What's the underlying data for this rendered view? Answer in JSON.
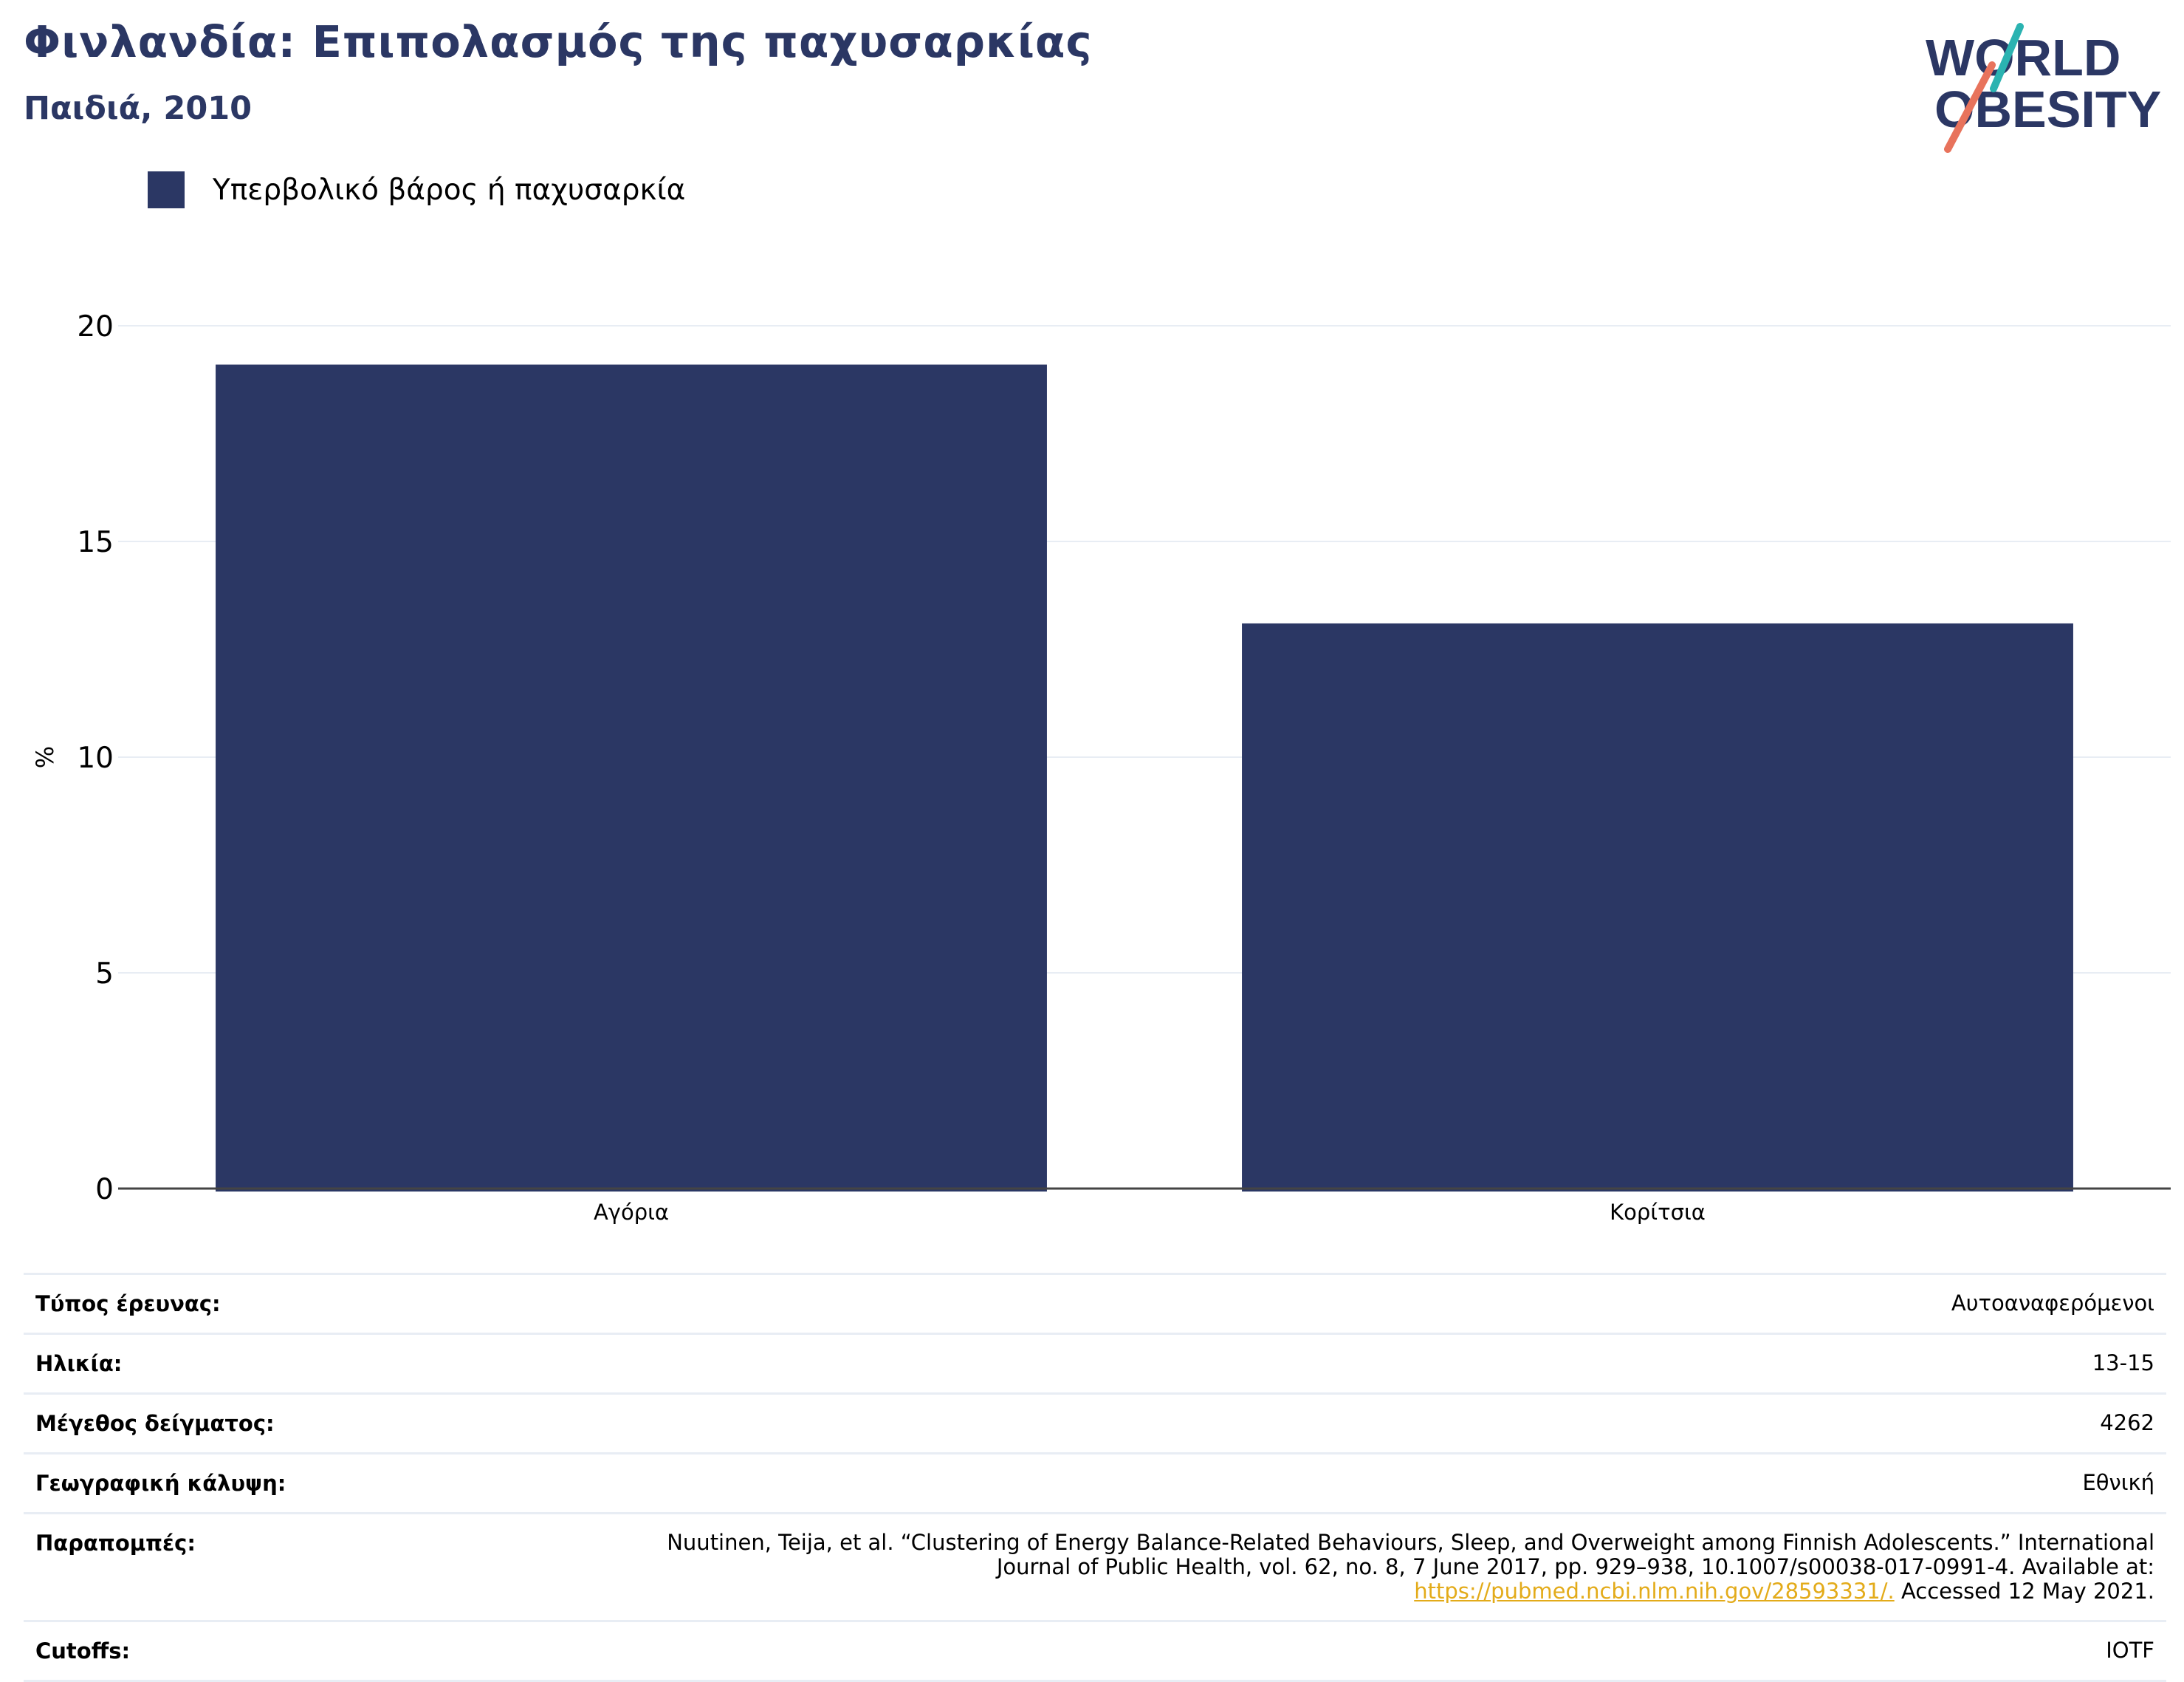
{
  "header": {
    "title": "Φινλανδία: Επιπολασμός της παχυσαρκίας",
    "subtitle": "Παιδιά, 2010"
  },
  "logo": {
    "line1": "WORLD",
    "line2": "OBESITY"
  },
  "colors": {
    "bar": "#2b3764",
    "title": "#2b3764",
    "link": "#e3ab1a",
    "grid": "#e8edf4"
  },
  "chart_data": {
    "type": "bar",
    "categories": [
      "Αγόρια",
      "Κορίτσια"
    ],
    "series": [
      {
        "name": "Υπερβολικό βάρος ή παχυσαρκία",
        "values": [
          19.1,
          13.1
        ]
      }
    ],
    "ylabel": "%",
    "ylim": [
      0,
      20
    ],
    "yticks": [
      0,
      5,
      10,
      15,
      20
    ],
    "grid": true,
    "legend": "top-left"
  },
  "meta": {
    "survey_type": {
      "label": "Τύπος έρευνας:",
      "value": "Αυτοαναφερόμενοι"
    },
    "age": {
      "label": "Ηλικία:",
      "value": "13-15"
    },
    "sample_size": {
      "label": "Μέγεθος δείγματος:",
      "value": "4262"
    },
    "coverage": {
      "label": "Γεωγραφική κάλυψη:",
      "value": "Εθνική"
    },
    "references": {
      "label": "Παραπομπές:",
      "text": "Nuutinen, Teija, et al. “Clustering of Energy Balance-Related Behaviours, Sleep, and Overweight among Finnish Adolescents.” International Journal of Public Health, vol. 62, no. 8, 7 June 2017, pp. 929–938, 10.1007/s00038-017-0991-4. Available at:",
      "link": "https://pubmed.ncbi.nlm.nih.gov/28593331/.",
      "accessed": "Accessed 12 May 2021."
    },
    "cutoffs": {
      "label": "Cutoffs:",
      "value": "IOTF"
    }
  }
}
